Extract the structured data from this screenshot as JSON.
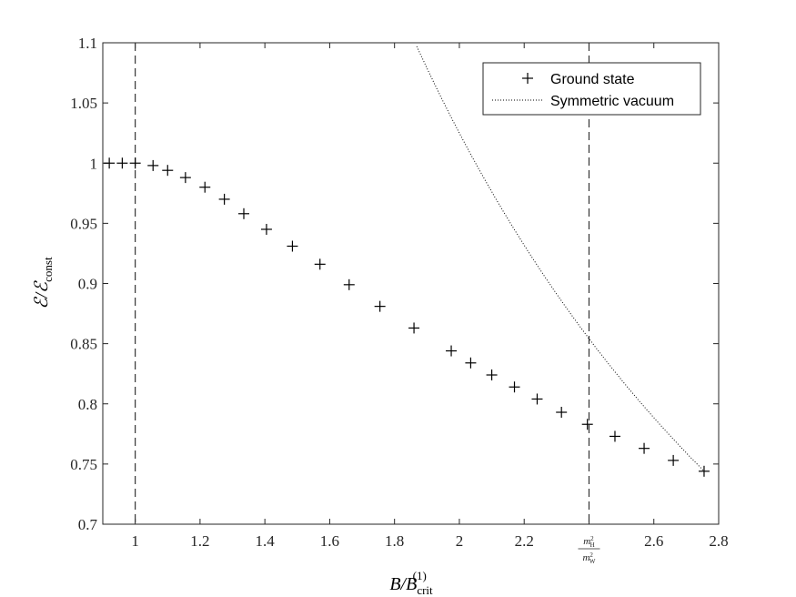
{
  "chart_data": {
    "type": "scatter",
    "xlabel": "B/B_crit^(1)",
    "ylabel": "ℰ/ℰ_const",
    "xlim": [
      0.9,
      2.8
    ],
    "ylim": [
      0.7,
      1.1
    ],
    "xticks": [
      {
        "value": 1.0,
        "label": "1"
      },
      {
        "value": 1.2,
        "label": "1.2"
      },
      {
        "value": 1.4,
        "label": "1.4"
      },
      {
        "value": 1.6,
        "label": "1.6"
      },
      {
        "value": 1.8,
        "label": "1.8"
      },
      {
        "value": 2.0,
        "label": "2"
      },
      {
        "value": 2.2,
        "label": "2.2"
      },
      {
        "value": 2.4,
        "label": "m_H^2/m_W^2"
      },
      {
        "value": 2.6,
        "label": "2.6"
      },
      {
        "value": 2.8,
        "label": "2.8"
      }
    ],
    "yticks": [
      {
        "value": 0.7,
        "label": "0.7"
      },
      {
        "value": 0.75,
        "label": "0.75"
      },
      {
        "value": 0.8,
        "label": "0.8"
      },
      {
        "value": 0.85,
        "label": "0.85"
      },
      {
        "value": 0.9,
        "label": "0.9"
      },
      {
        "value": 0.95,
        "label": "0.95"
      },
      {
        "value": 1.0,
        "label": "1"
      },
      {
        "value": 1.05,
        "label": "1.05"
      },
      {
        "value": 1.1,
        "label": "1.1"
      }
    ],
    "grid": false,
    "legend_position": "top-right",
    "vertical_lines": [
      1.0,
      2.4
    ],
    "series": [
      {
        "name": "Ground state",
        "marker": "plus",
        "x": [
          0.92,
          0.96,
          1.0,
          1.055,
          1.1,
          1.155,
          1.215,
          1.275,
          1.335,
          1.405,
          1.485,
          1.57,
          1.66,
          1.755,
          1.86,
          1.975,
          2.035,
          2.1,
          2.17,
          2.24,
          2.315,
          2.395,
          2.48,
          2.57,
          2.66,
          2.755
        ],
        "y": [
          1.0,
          1.0,
          1.0,
          0.998,
          0.994,
          0.988,
          0.98,
          0.97,
          0.958,
          0.945,
          0.931,
          0.916,
          0.899,
          0.881,
          0.863,
          0.844,
          0.834,
          0.824,
          0.814,
          0.804,
          0.793,
          0.783,
          0.773,
          0.763,
          0.753,
          0.744
        ]
      },
      {
        "name": "Symmetric vacuum",
        "line": "dotted",
        "curve": "y = 2.05 / x",
        "x_start": 1.865,
        "x_end": 2.755
      }
    ]
  }
}
